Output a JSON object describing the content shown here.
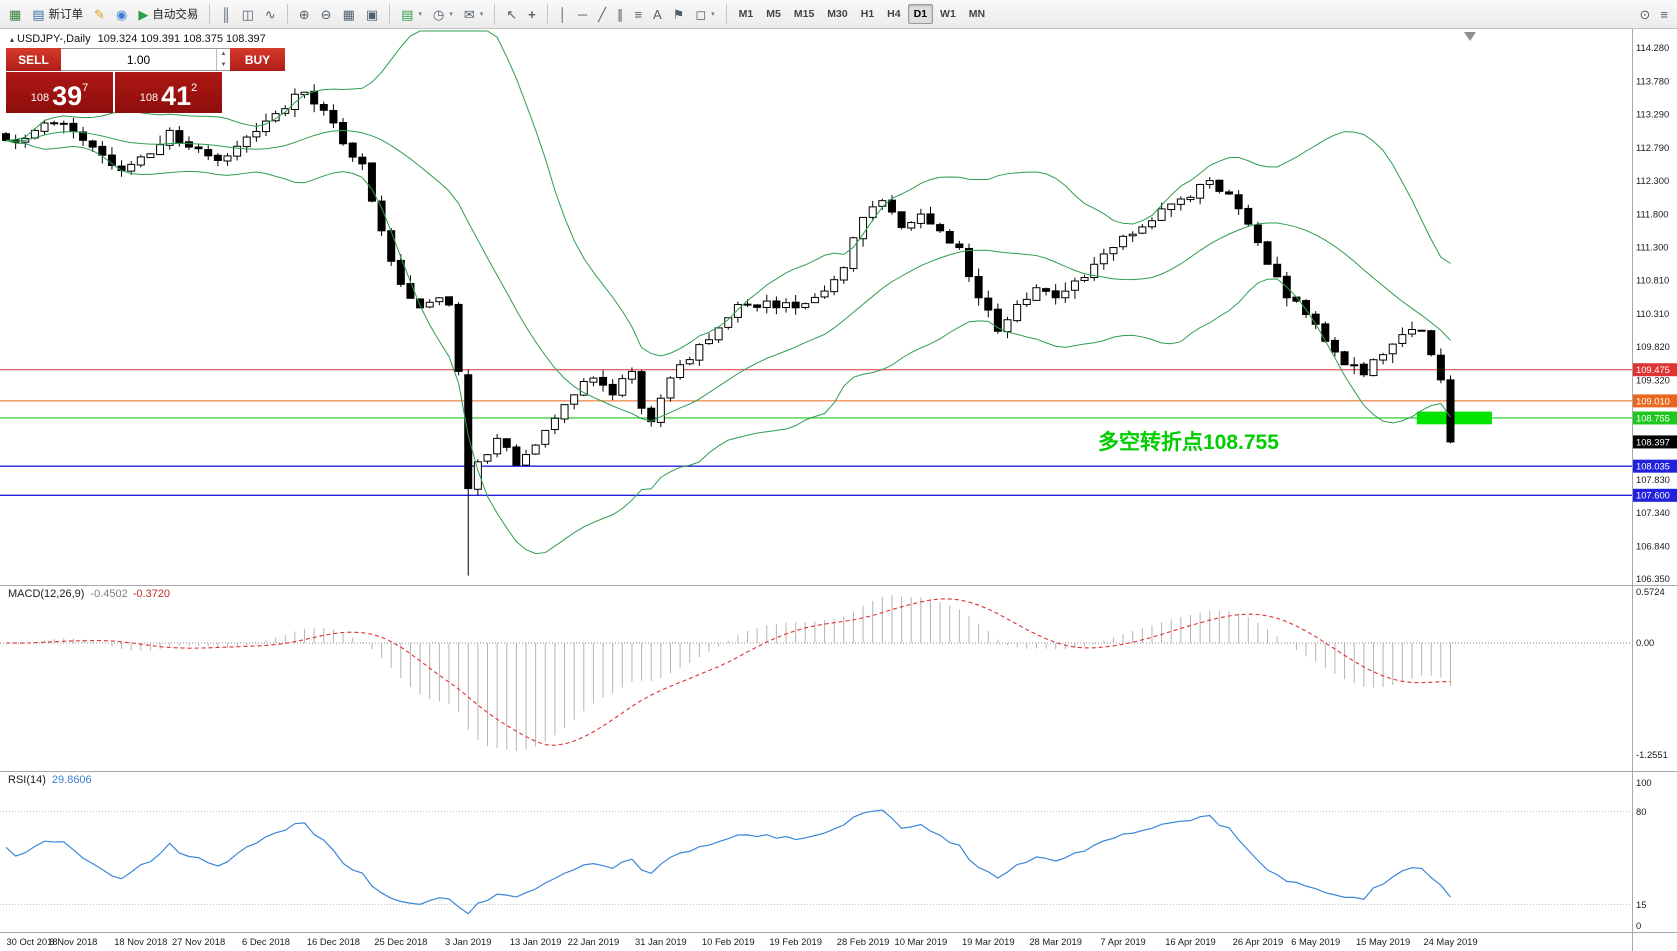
{
  "toolbar": {
    "groups": [
      {
        "items": [
          {
            "name": "new-chart",
            "glyph": "▦",
            "color": "#3a7f3a"
          },
          {
            "name": "new-order",
            "glyph": "▤",
            "color": "#3a6ea5",
            "label": "新订单"
          },
          {
            "name": "metaeditor",
            "glyph": "✎",
            "color": "#dd9c12"
          },
          {
            "name": "community",
            "glyph": "◉",
            "color": "#3b7bd4"
          },
          {
            "name": "algo-trading",
            "glyph": "▶",
            "color": "#2e9e44",
            "label": "自动交易"
          }
        ]
      },
      {
        "items": [
          {
            "name": "chart-bars",
            "glyph": "║"
          },
          {
            "name": "chart-candles",
            "glyph": "◫"
          },
          {
            "name": "chart-line",
            "glyph": "∿"
          }
        ]
      },
      {
        "items": [
          {
            "name": "zoom-in",
            "glyph": "⊕"
          },
          {
            "name": "zoom-out",
            "glyph": "⊖"
          },
          {
            "name": "grid",
            "glyph": "▦"
          },
          {
            "name": "tile-windows",
            "glyph": "▣"
          }
        ]
      },
      {
        "items": [
          {
            "name": "add-indicator",
            "glyph": "▤",
            "color": "#2e9e44",
            "caret": true
          },
          {
            "name": "periods",
            "glyph": "◷",
            "caret": true
          },
          {
            "name": "alerts",
            "glyph": "✉",
            "caret": true
          }
        ]
      },
      {
        "items": [
          {
            "name": "cursor",
            "glyph": "↖"
          },
          {
            "name": "crosshair",
            "glyph": "+"
          }
        ]
      },
      {
        "items": [
          {
            "name": "vertical-line",
            "glyph": "│"
          },
          {
            "name": "horizontal-line",
            "glyph": "─"
          },
          {
            "name": "trendline",
            "glyph": "╱"
          },
          {
            "name": "equidistant-channel",
            "glyph": "∥"
          },
          {
            "name": "fibonacci",
            "glyph": "≡"
          },
          {
            "name": "text-tool",
            "glyph": "A"
          },
          {
            "name": "label-tool",
            "glyph": "⚑"
          },
          {
            "name": "shapes",
            "glyph": "◻",
            "caret": true
          }
        ]
      }
    ],
    "timeframes": {
      "items": [
        "M1",
        "M5",
        "M15",
        "M30",
        "H1",
        "H4",
        "D1",
        "W1",
        "MN"
      ],
      "active": "D1"
    },
    "right_items": [
      {
        "name": "search",
        "glyph": "⊙"
      },
      {
        "name": "toolbar-menu",
        "glyph": "≡"
      }
    ]
  },
  "chart": {
    "title": {
      "marker": "▴",
      "symbol": "USDJPY-,Daily",
      "ohlc": "109.324 109.391 108.375 108.397"
    },
    "trade_panel": {
      "sell_label": "SELL",
      "buy_label": "BUY",
      "volume": "1.00",
      "spin_up": "▲",
      "spin_down": "▼",
      "bid": {
        "prefix": "108",
        "big": "39",
        "sup": "7"
      },
      "ask": {
        "prefix": "108",
        "big": "41",
        "sup": "2"
      }
    },
    "annotation": {
      "text": "多空转折点108.755",
      "color": "#00ce00"
    },
    "shift_marker": "▼"
  },
  "panes": {
    "macd": {
      "name": "MACD(12,26,9)",
      "value1": "-0.4502",
      "value2": "-0.3720",
      "axis": {
        "max": "0.5724",
        "zero": "0.00",
        "min": "-1.2551"
      }
    },
    "rsi": {
      "name": "RSI(14)",
      "value": "29.8606",
      "axis": {
        "max": "100",
        "upper": "80",
        "lower": "15",
        "min": "0"
      }
    }
  },
  "chart_data": {
    "type": "candlestick",
    "symbol": "USDJPY",
    "timeframe": "Daily",
    "bars": 151,
    "last_bar_ohlc": {
      "open": 109.324,
      "high": 109.391,
      "low": 108.375,
      "close": 108.397
    },
    "price_range": [
      106.35,
      114.28
    ],
    "price_axis_ticks": [
      "114.280",
      "113.780",
      "113.290",
      "112.790",
      "112.300",
      "111.800",
      "111.300",
      "110.810",
      "110.310",
      "109.820",
      "109.320",
      "107.830",
      "107.340",
      "106.840",
      "106.350"
    ],
    "close_anchors": [
      [
        0,
        112.9
      ],
      [
        3,
        113.05
      ],
      [
        6,
        113.15
      ],
      [
        9,
        112.8
      ],
      [
        12,
        112.45
      ],
      [
        15,
        112.7
      ],
      [
        17,
        113.05
      ],
      [
        19,
        112.8
      ],
      [
        22,
        112.6
      ],
      [
        25,
        112.95
      ],
      [
        28,
        113.3
      ],
      [
        31,
        113.62
      ],
      [
        33,
        113.35
      ],
      [
        35,
        112.85
      ],
      [
        37,
        112.55
      ],
      [
        39,
        111.55
      ],
      [
        41,
        110.75
      ],
      [
        43,
        110.4
      ],
      [
        45,
        110.55
      ],
      [
        47,
        110.25
      ],
      [
        48,
        107.7
      ],
      [
        49,
        108.1
      ],
      [
        51,
        108.45
      ],
      [
        53,
        108.05
      ],
      [
        55,
        108.35
      ],
      [
        57,
        108.75
      ],
      [
        59,
        109.1
      ],
      [
        61,
        109.35
      ],
      [
        63,
        109.1
      ],
      [
        65,
        109.45
      ],
      [
        66,
        108.9
      ],
      [
        67,
        108.7
      ],
      [
        68,
        109.05
      ],
      [
        70,
        109.55
      ],
      [
        72,
        109.85
      ],
      [
        74,
        110.1
      ],
      [
        76,
        110.45
      ],
      [
        79,
        110.5
      ],
      [
        82,
        110.4
      ],
      [
        85,
        110.65
      ],
      [
        87,
        111.0
      ],
      [
        89,
        111.75
      ],
      [
        91,
        112.0
      ],
      [
        93,
        111.6
      ],
      [
        95,
        111.8
      ],
      [
        97,
        111.55
      ],
      [
        99,
        111.3
      ],
      [
        101,
        110.55
      ],
      [
        103,
        110.05
      ],
      [
        105,
        110.45
      ],
      [
        107,
        110.7
      ],
      [
        109,
        110.55
      ],
      [
        111,
        110.8
      ],
      [
        113,
        111.05
      ],
      [
        115,
        111.3
      ],
      [
        117,
        111.5
      ],
      [
        119,
        111.7
      ],
      [
        121,
        111.95
      ],
      [
        123,
        112.05
      ],
      [
        125,
        112.3
      ],
      [
        127,
        112.1
      ],
      [
        129,
        111.65
      ],
      [
        131,
        111.05
      ],
      [
        133,
        110.55
      ],
      [
        135,
        110.3
      ],
      [
        137,
        109.9
      ],
      [
        139,
        109.55
      ],
      [
        141,
        109.4
      ],
      [
        143,
        109.7
      ],
      [
        145,
        110.0
      ],
      [
        147,
        110.05
      ],
      [
        148,
        109.7
      ],
      [
        149,
        109.324
      ],
      [
        150,
        108.397
      ]
    ],
    "special_bars": {
      "47": {
        "c": 109.45
      },
      "48": {
        "o": 109.4,
        "h": 109.48,
        "l": 106.4,
        "c": 107.7
      },
      "150": {
        "o": 109.324,
        "h": 109.391,
        "l": 108.375,
        "c": 108.397
      }
    },
    "levels": [
      {
        "price": 109.475,
        "label": "109.475",
        "color": "#e03333",
        "w": 1.1
      },
      {
        "price": 109.01,
        "label": "109.010",
        "color": "#e8661e",
        "w": 1.1
      },
      {
        "price": 108.755,
        "label": "108.755",
        "color": "#1ec71e",
        "w": 1.2
      },
      {
        "price": 108.035,
        "label": "108.035",
        "color": "#2020dd",
        "w": 1.4
      },
      {
        "price": 107.6,
        "label": "107.600",
        "color": "#2020dd",
        "w": 1.4
      }
    ],
    "current_price": {
      "price": 108.397,
      "label": "108.397",
      "color": "#000000"
    },
    "highlight_box": {
      "price_top": 108.85,
      "price_bottom": 108.66,
      "bar_start": 146.5,
      "bar_end": 154.3,
      "color": "#00e400"
    },
    "indicators": {
      "bollinger_period": 20,
      "bollinger_dev": 2,
      "macd": [
        12,
        26,
        9
      ],
      "rsi_period": 14
    },
    "macd_axis": {
      "max": 0.5724,
      "min": -1.2551
    },
    "rsi_levels": [
      80,
      15
    ],
    "x_labels": [
      "30 Oct 2018",
      "8 Nov 2018",
      "18 Nov 2018",
      "27 Nov 2018",
      "6 Dec 2018",
      "16 Dec 2018",
      "25 Dec 2018",
      "3 Jan 2019",
      "13 Jan 2019",
      "22 Jan 2019",
      "31 Jan 2019",
      "10 Feb 2019",
      "19 Feb 2019",
      "28 Feb 2019",
      "10 Mar 2019",
      "19 Mar 2019",
      "28 Mar 2019",
      "7 Apr 2019",
      "16 Apr 2019",
      "26 Apr 2019",
      "6 May 2019",
      "15 May 2019",
      "24 May 2019"
    ]
  }
}
